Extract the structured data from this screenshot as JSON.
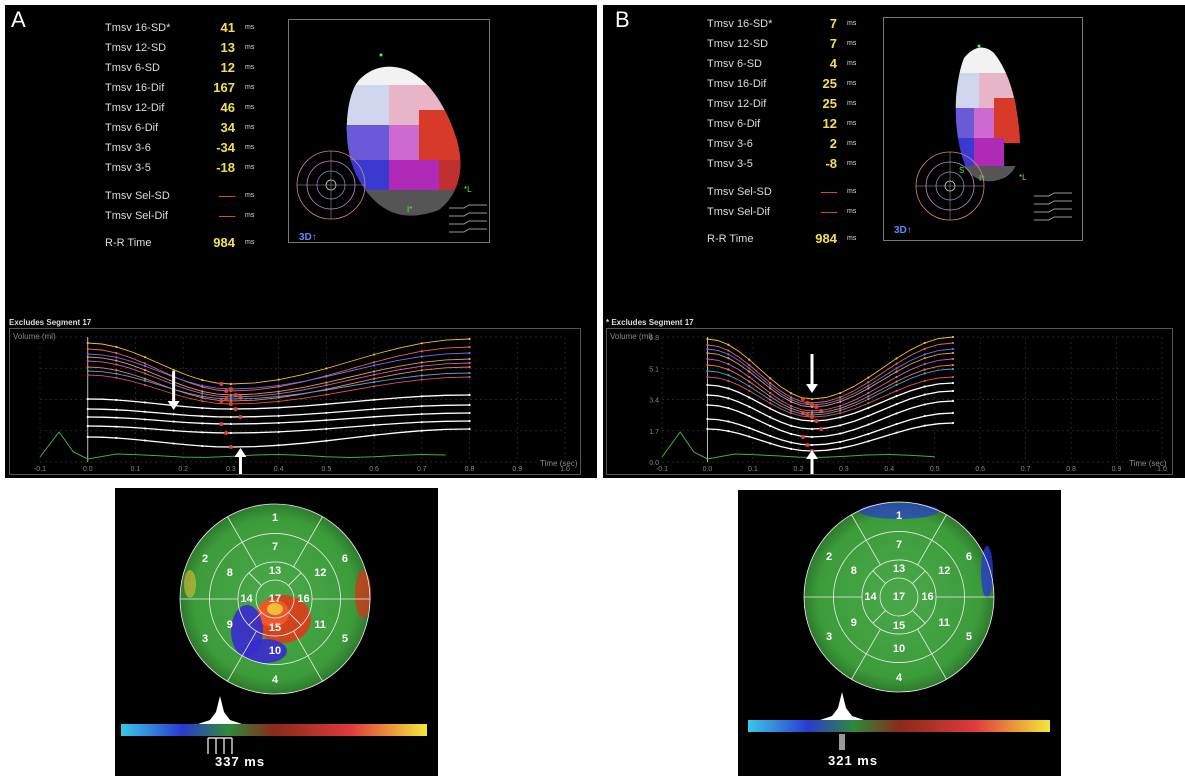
{
  "panel_a": {
    "label": "A",
    "metrics": [
      {
        "name": "Tmsv 16-SD*",
        "value": "41",
        "unit": "ms"
      },
      {
        "name": "Tmsv 12-SD",
        "value": "13",
        "unit": "ms"
      },
      {
        "name": "Tmsv 6-SD",
        "value": "12",
        "unit": "ms"
      },
      {
        "name": "Tmsv 16-Dif",
        "value": "167",
        "unit": "ms"
      },
      {
        "name": "Tmsv 12-Dif",
        "value": "46",
        "unit": "ms"
      },
      {
        "name": "Tmsv 6-Dif",
        "value": "34",
        "unit": "ms"
      },
      {
        "name": "Tmsv 3-6",
        "value": "-34",
        "unit": "ms"
      },
      {
        "name": "Tmsv 3-5",
        "value": "-18",
        "unit": "ms"
      },
      {
        "name": "Tmsv Sel-SD",
        "value": "-----",
        "unit": "ms"
      },
      {
        "name": "Tmsv Sel-Dif",
        "value": "-----",
        "unit": "ms"
      },
      {
        "name": "R-R Time",
        "value": "984",
        "unit": "ms"
      }
    ],
    "model_tag": "3D",
    "plot_title": "Excludes Segment 17",
    "graph": {
      "ylabel": "Volume (ml)",
      "xlabel": "Time (sec)",
      "xticks": [
        "-0.1",
        "0.0",
        "0.1",
        "0.2",
        "0.3",
        "0.4",
        "0.5",
        "0.6",
        "0.7",
        "0.8",
        "0.9",
        "1.0"
      ],
      "yticks": []
    },
    "bullseye_value": "337 ms",
    "bullseye_segments": [
      "1",
      "2",
      "3",
      "4",
      "5",
      "6",
      "7",
      "8",
      "9",
      "10",
      "11",
      "12",
      "13",
      "14",
      "15",
      "16",
      "17"
    ]
  },
  "panel_b": {
    "label": "B",
    "metrics": [
      {
        "name": "Tmsv 16-SD*",
        "value": "7",
        "unit": "ms"
      },
      {
        "name": "Tmsv 12-SD",
        "value": "7",
        "unit": "ms"
      },
      {
        "name": "Tmsv 6-SD",
        "value": "4",
        "unit": "ms"
      },
      {
        "name": "Tmsv 16-Dif",
        "value": "25",
        "unit": "ms"
      },
      {
        "name": "Tmsv 12-Dif",
        "value": "25",
        "unit": "ms"
      },
      {
        "name": "Tmsv 6-Dif",
        "value": "12",
        "unit": "ms"
      },
      {
        "name": "Tmsv 3-6",
        "value": "2",
        "unit": "ms"
      },
      {
        "name": "Tmsv 3-5",
        "value": "-8",
        "unit": "ms"
      },
      {
        "name": "Tmsv Sel-SD",
        "value": "-----",
        "unit": "ms"
      },
      {
        "name": "Tmsv Sel-Dif",
        "value": "-----",
        "unit": "ms"
      },
      {
        "name": "R-R Time",
        "value": "984",
        "unit": "ms"
      }
    ],
    "model_tag": "3D",
    "plot_title": "* Excludes Segment 17",
    "graph": {
      "ylabel": "Volume (ml)",
      "xlabel": "Time (sec)",
      "xticks": [
        "-0.1",
        "0.0",
        "0.1",
        "0.2",
        "0.3",
        "0.4",
        "0.5",
        "0.6",
        "0.7",
        "0.8",
        "0.9",
        "1.0"
      ],
      "yticks": [
        "0.0",
        "1.7",
        "3.4",
        "5.1",
        "6.8"
      ]
    },
    "bullseye_value": "321 ms",
    "bullseye_segments": [
      "1",
      "2",
      "3",
      "4",
      "5",
      "6",
      "7",
      "8",
      "9",
      "10",
      "11",
      "12",
      "13",
      "14",
      "15",
      "16",
      "17"
    ]
  },
  "colors": {
    "metric_value": "#f2e24a",
    "dashed_value": "#e04a3a",
    "myocardium_green": "#3c9c3a",
    "delay_red": "#e03a1a",
    "early_blue": "#3a2ad0"
  }
}
